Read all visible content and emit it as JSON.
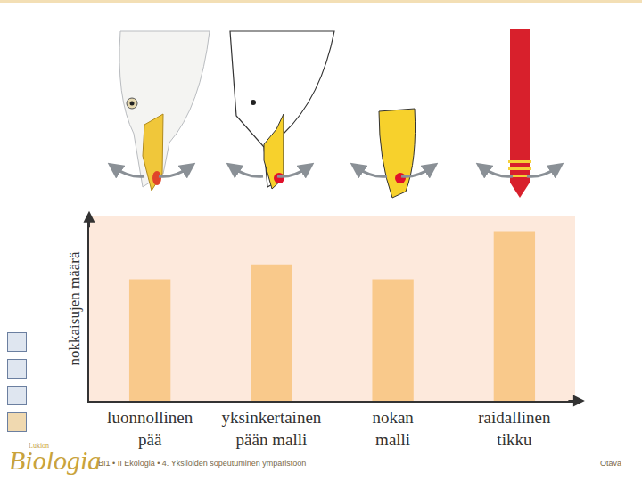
{
  "chart_data": {
    "type": "bar",
    "y_label": "nokkaisujen määrä",
    "categories": [
      "luonnollinen\npää",
      "yksinkertainen\npään malli",
      "nokan\nmalli",
      "raidallinen\ntikku"
    ],
    "values": [
      6.6,
      7.4,
      6.6,
      9.2
    ],
    "color": "#f9c98b",
    "ylim": [
      0,
      10
    ],
    "tick_labels": "x",
    "grid": false
  },
  "slide": {
    "logo_prefix": "Lukion",
    "logo": "Biologia",
    "footer": "BI1 • II Ekologia • 4. Yksilöiden sopeutuminen ympäristöön",
    "publisher": "Otava"
  }
}
